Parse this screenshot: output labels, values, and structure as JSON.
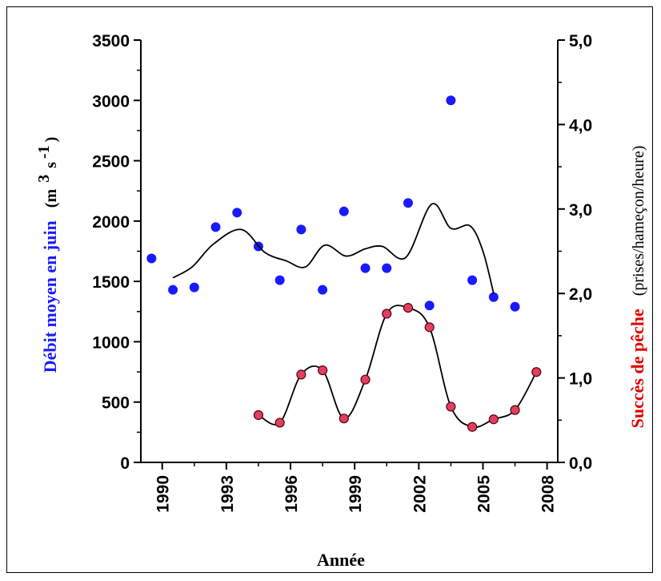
{
  "chart_data": {
    "type": "scatter",
    "xlabel": "Année",
    "x_ticks": [
      "1990",
      "1993",
      "1996",
      "1999",
      "2002",
      "2005",
      "2008"
    ],
    "xlim": [
      1989,
      2008.5
    ],
    "left_axis": {
      "label": "Débit moyen en juin",
      "unit": "(m 3 s-1)",
      "unit_parts": {
        "open": "(m",
        "sup1": "3",
        "mid": "s",
        "sup2": "-1",
        "close": ")"
      },
      "ylim": [
        0,
        3500
      ],
      "ticks": [
        "0",
        "500",
        "1000",
        "1500",
        "2000",
        "2500",
        "3000",
        "3500"
      ]
    },
    "right_axis": {
      "label": "Succès de pêche",
      "unit": "(prises/hameçon/heure)",
      "ylim": [
        0,
        5
      ],
      "ticks": [
        "0,0",
        "1,0",
        "2,0",
        "3,0",
        "4,0",
        "5,0"
      ]
    },
    "series": [
      {
        "axis": "left",
        "kind": "points",
        "color": "#1a1aff",
        "points": [
          [
            1989.5,
            1690
          ],
          [
            1990.5,
            1430
          ],
          [
            1991.5,
            1450
          ],
          [
            1992.5,
            1950
          ],
          [
            1993.5,
            2070
          ],
          [
            1994.5,
            1790
          ],
          [
            1995.5,
            1510
          ],
          [
            1996.5,
            1930
          ],
          [
            1997.5,
            1430
          ],
          [
            1998.5,
            2080
          ],
          [
            1999.5,
            1610
          ],
          [
            2000.5,
            1610
          ],
          [
            2001.5,
            2150
          ],
          [
            2002.5,
            1300
          ],
          [
            2003.5,
            3000
          ],
          [
            2004.5,
            1510
          ],
          [
            2005.5,
            1370
          ],
          [
            2006.5,
            1290
          ]
        ]
      },
      {
        "axis": "left",
        "kind": "line",
        "color": "#000000",
        "points": [
          [
            1990.5,
            1530
          ],
          [
            1991.4,
            1620
          ],
          [
            1992.4,
            1810
          ],
          [
            1993.7,
            1930
          ],
          [
            1994.8,
            1740
          ],
          [
            1995.8,
            1670
          ],
          [
            1996.7,
            1620
          ],
          [
            1997.6,
            1800
          ],
          [
            1998.6,
            1710
          ],
          [
            1999.5,
            1770
          ],
          [
            2000.3,
            1790
          ],
          [
            2001.4,
            1700
          ],
          [
            2002.6,
            2140
          ],
          [
            2003.5,
            1940
          ],
          [
            2004.4,
            1960
          ],
          [
            2005.0,
            1750
          ],
          [
            2005.5,
            1400
          ]
        ]
      },
      {
        "axis": "right",
        "kind": "line+points",
        "color": "#e04060",
        "points": [
          [
            1994.5,
            0.56
          ],
          [
            1995.5,
            0.47
          ],
          [
            1996.5,
            1.04
          ],
          [
            1997.5,
            1.09
          ],
          [
            1998.5,
            0.52
          ],
          [
            1999.5,
            0.98
          ],
          [
            2000.5,
            1.76
          ],
          [
            2001.5,
            1.83
          ],
          [
            2002.5,
            1.6
          ],
          [
            2003.5,
            0.66
          ],
          [
            2004.5,
            0.42
          ],
          [
            2005.5,
            0.51
          ],
          [
            2006.5,
            0.62
          ],
          [
            2007.5,
            1.07
          ]
        ]
      }
    ]
  }
}
